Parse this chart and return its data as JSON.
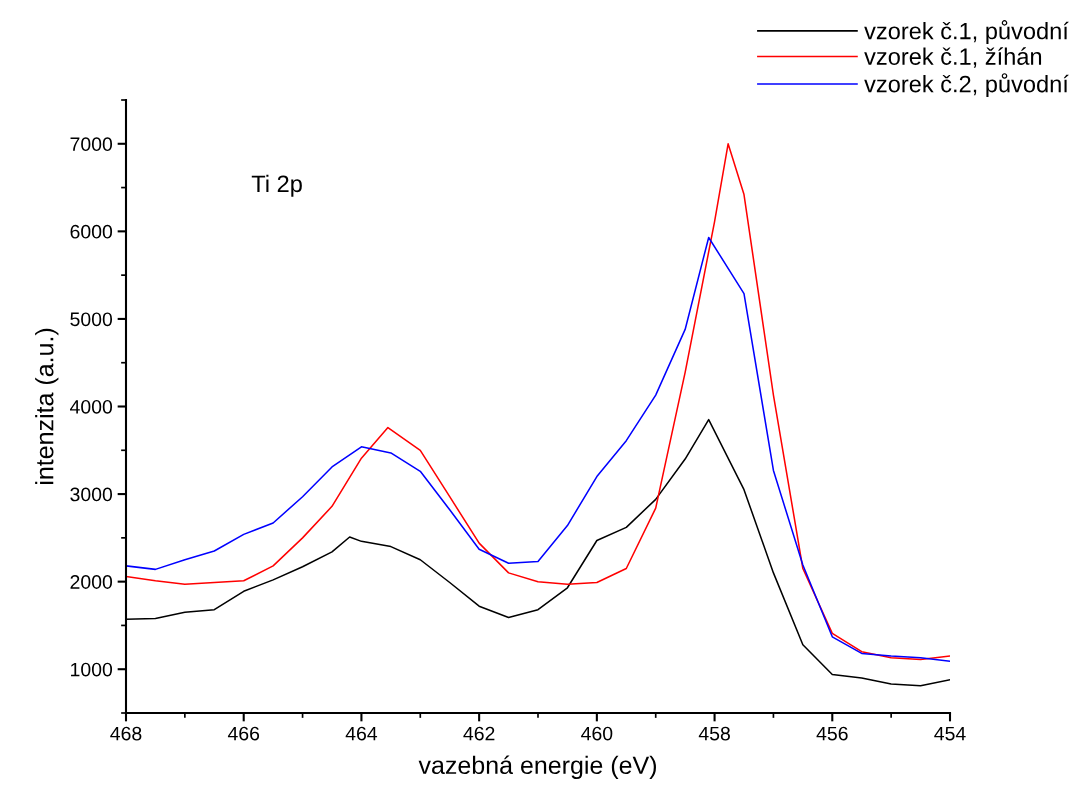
{
  "chart_data": {
    "type": "line",
    "xlabel": "vazebná energie (eV)",
    "ylabel": "intenzita (a.u.)",
    "annotations": [
      "Ti 2p"
    ],
    "xlim": [
      468,
      454
    ],
    "xticks": [
      468,
      466,
      464,
      462,
      460,
      458,
      456,
      454
    ],
    "ylim": [
      500,
      7500
    ],
    "yticks": [
      1000,
      2000,
      3000,
      4000,
      5000,
      6000,
      7000
    ],
    "grid": false,
    "legend": "top right",
    "marker": "none",
    "line_style": "solid",
    "series": [
      {
        "name": "vzorek č.1, původní",
        "color": "#000000",
        "x": [
          468,
          467.5,
          467,
          466.5,
          466,
          465.5,
          465,
          464.5,
          464.2,
          464,
          463.5,
          463,
          462.5,
          462,
          461.5,
          461,
          460.5,
          460,
          459.5,
          459,
          458.5,
          458.1,
          457.5,
          457,
          456.5,
          456,
          455.5,
          455,
          454.5,
          454
        ],
        "values": [
          1570,
          1580,
          1650,
          1680,
          1890,
          2020,
          2170,
          2340,
          2510,
          2460,
          2400,
          2250,
          1990,
          1720,
          1590,
          1680,
          1930,
          2470,
          2620,
          2940,
          3400,
          3850,
          3050,
          2100,
          1280,
          940,
          900,
          830,
          810,
          880
        ]
      },
      {
        "name": "vzorek č.1, žíhán",
        "color": "#ff0000",
        "x": [
          468,
          467.5,
          467,
          466.5,
          466,
          465.5,
          465,
          464.5,
          464,
          463.55,
          463,
          462.5,
          462,
          461.5,
          461,
          460.5,
          460,
          459.5,
          459,
          458.5,
          458,
          457.77,
          457.5,
          457,
          456.5,
          456,
          455.5,
          455,
          454.5,
          454
        ],
        "values": [
          2060,
          2010,
          1970,
          1990,
          2010,
          2180,
          2500,
          2860,
          3410,
          3760,
          3500,
          2970,
          2440,
          2100,
          2000,
          1970,
          1990,
          2150,
          2840,
          4390,
          6110,
          7000,
          6420,
          4130,
          2150,
          1410,
          1200,
          1130,
          1110,
          1150
        ]
      },
      {
        "name": "vzorek č.2, původní",
        "color": "#0000ff",
        "x": [
          468,
          467.5,
          467,
          466.5,
          466,
          465.5,
          465,
          464.5,
          464,
          463.5,
          463,
          462.5,
          462,
          461.5,
          461,
          460.5,
          460,
          459.5,
          459,
          458.5,
          458.1,
          457.5,
          457,
          456.5,
          456,
          455.5,
          455,
          454.5,
          454
        ],
        "values": [
          2180,
          2140,
          2250,
          2350,
          2540,
          2670,
          2970,
          3310,
          3540,
          3470,
          3260,
          2820,
          2370,
          2210,
          2230,
          2640,
          3200,
          3610,
          4130,
          4880,
          5930,
          5290,
          3270,
          2190,
          1370,
          1180,
          1150,
          1130,
          1090
        ]
      }
    ]
  }
}
